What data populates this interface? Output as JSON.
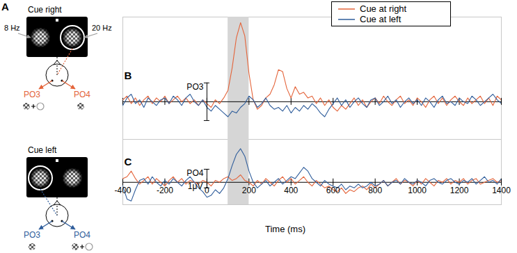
{
  "panel_a": {
    "label": "A",
    "top": {
      "title": "Cue right",
      "left_frequency": "8 Hz",
      "right_frequency": "20 Hz",
      "left_electrode": "PO3",
      "right_electrode": "PO4"
    },
    "bottom": {
      "title": "Cue left",
      "left_electrode": "PO3",
      "right_electrode": "PO4"
    }
  },
  "chart_data": [
    {
      "type": "line",
      "title": "B",
      "ylabel": "PO3",
      "x": [
        -400,
        -380,
        -360,
        -340,
        -320,
        -300,
        -280,
        -260,
        -240,
        -220,
        -200,
        -180,
        -160,
        -140,
        -120,
        -100,
        -80,
        -60,
        -40,
        -20,
        0,
        20,
        40,
        60,
        80,
        100,
        120,
        140,
        160,
        180,
        200,
        220,
        240,
        260,
        280,
        300,
        320,
        340,
        360,
        380,
        400,
        420,
        440,
        460,
        480,
        500,
        520,
        540,
        560,
        580,
        600,
        620,
        640,
        660,
        680,
        700,
        720,
        740,
        760,
        780,
        800,
        820,
        840,
        860,
        880,
        900,
        920,
        940,
        960,
        980,
        1000,
        1020,
        1040,
        1060,
        1080,
        1100,
        1120,
        1140,
        1160,
        1180,
        1200,
        1220,
        1240,
        1260,
        1280,
        1300,
        1320,
        1340,
        1360,
        1380,
        1400
      ],
      "xlim": [
        -400,
        1400
      ],
      "xticks": [
        -400,
        -200,
        0,
        200,
        400,
        600,
        800,
        1000,
        1200,
        1400
      ],
      "ylim": [
        -2,
        4.5
      ],
      "yticks": [
        -1,
        1
      ],
      "tick_labels": false,
      "highlight": [
        100,
        200
      ],
      "legend": "top",
      "series": [
        {
          "name": "Cue at right",
          "color": "#e4643a",
          "values": [
            0.1,
            0.3,
            -0.1,
            0.2,
            -0.2,
            0.1,
            0.3,
            -0.1,
            0.2,
            0.0,
            0.3,
            -0.1,
            0.1,
            0.3,
            0.0,
            0.2,
            -0.1,
            0.1,
            -0.2,
            0.1,
            -0.1,
            -0.3,
            0.1,
            -0.1,
            0.2,
            0.6,
            1.8,
            3.4,
            4.2,
            3.5,
            1.5,
            0.1,
            -0.4,
            -0.2,
            0.2,
            0.4,
            0.9,
            1.7,
            1.6,
            0.7,
            0.2,
            0.8,
            0.4,
            0.5,
            0.2,
            0.3,
            -0.1,
            0.2,
            -0.2,
            0.1,
            -0.3,
            -0.5,
            -0.2,
            -0.4,
            -0.1,
            0.2,
            -0.2,
            0.1,
            -0.3,
            0.0,
            0.2,
            -0.1,
            0.3,
            0.0,
            -0.2,
            0.1,
            0.3,
            -0.1,
            0.1,
            -0.2,
            0.2,
            0.0,
            -0.3,
            0.1,
            0.3,
            -0.1,
            0.2,
            -0.2,
            0.1,
            0.3,
            0.0,
            -0.2,
            0.2,
            -0.1,
            0.1,
            0.3,
            -0.1,
            0.2,
            -0.2,
            0.3,
            0.1
          ]
        },
        {
          "name": "Cue at left",
          "color": "#2f5d9b",
          "values": [
            -0.2,
            0.2,
            0.4,
            -0.1,
            0.1,
            -0.3,
            0.2,
            0.0,
            -0.2,
            0.1,
            0.2,
            -0.1,
            0.3,
            0.1,
            -0.2,
            0.2,
            0.4,
            0.0,
            -0.2,
            0.1,
            -0.3,
            -0.5,
            -0.2,
            -0.4,
            -0.6,
            -0.8,
            -0.5,
            -0.6,
            -0.3,
            -0.1,
            0.3,
            0.1,
            -0.3,
            -0.1,
            0.2,
            -0.2,
            -0.4,
            -0.3,
            -0.5,
            -0.2,
            -0.6,
            -0.3,
            -0.5,
            -0.2,
            -0.4,
            -0.1,
            -0.3,
            -0.6,
            -0.8,
            -0.4,
            -0.1,
            0.2,
            -0.2,
            0.1,
            -0.3,
            0.0,
            0.2,
            -0.1,
            -0.3,
            0.1,
            0.2,
            -0.2,
            0.0,
            0.3,
            -0.1,
            0.1,
            -0.3,
            0.0,
            0.2,
            -0.1,
            0.1,
            -0.2,
            0.2,
            0.0,
            -0.3,
            0.1,
            0.3,
            -0.1,
            0.0,
            -0.2,
            0.2,
            0.0,
            -0.1,
            0.3,
            0.1,
            -0.2,
            0.0,
            0.2,
            0.4,
            0.1,
            -0.1
          ]
        }
      ]
    },
    {
      "type": "line",
      "title": "C",
      "ylabel": "PO4",
      "xlabel": "Time (ms)",
      "annotations": [
        "1μV"
      ],
      "x": [
        -400,
        -380,
        -360,
        -340,
        -320,
        -300,
        -280,
        -260,
        -240,
        -220,
        -200,
        -180,
        -160,
        -140,
        -120,
        -100,
        -80,
        -60,
        -40,
        -20,
        0,
        20,
        40,
        60,
        80,
        100,
        120,
        140,
        160,
        180,
        200,
        220,
        240,
        260,
        280,
        300,
        320,
        340,
        360,
        380,
        400,
        420,
        440,
        460,
        480,
        500,
        520,
        540,
        560,
        580,
        600,
        620,
        640,
        660,
        680,
        700,
        720,
        740,
        760,
        780,
        800,
        820,
        840,
        860,
        880,
        900,
        920,
        940,
        960,
        980,
        1000,
        1020,
        1040,
        1060,
        1080,
        1100,
        1120,
        1140,
        1160,
        1180,
        1200,
        1220,
        1240,
        1260,
        1280,
        1300,
        1320,
        1340,
        1360,
        1380,
        1400
      ],
      "xlim": [
        -400,
        1400
      ],
      "xticks": [
        -400,
        -200,
        0,
        200,
        400,
        600,
        800,
        1000,
        1200,
        1400
      ],
      "ylim": [
        -1.2,
        2.3
      ],
      "yticks": [
        -0.3,
        0.7
      ],
      "tick_labels": "x",
      "highlight": [
        100,
        200
      ],
      "series": [
        {
          "name": "Cue at right",
          "color": "#e4643a",
          "values": [
            0.2,
            0.3,
            0.6,
            0.2,
            -0.1,
            0.1,
            0.3,
            -0.1,
            0.2,
            0.0,
            -0.2,
            0.1,
            0.3,
            0.0,
            0.2,
            -0.1,
            0.1,
            0.0,
            -0.1,
            0.1,
            0.0,
            -0.2,
            0.1,
            0.0,
            0.2,
            0.3,
            0.1,
            0.2,
            0.4,
            0.1,
            0.0,
            -0.2,
            0.1,
            -0.1,
            0.2,
            0.0,
            -0.2,
            0.1,
            0.3,
            0.0,
            0.2,
            -0.1,
            0.1,
            0.3,
            0.0,
            -0.2,
            0.1,
            -0.1,
            -0.3,
            -0.2,
            -0.4,
            -0.5,
            -0.3,
            -0.6,
            -0.4,
            -0.5,
            -0.3,
            -0.2,
            -0.4,
            -0.1,
            -0.3,
            -0.1,
            0.1,
            -0.2,
            0.0,
            0.2,
            -0.1,
            0.1,
            0.0,
            -0.2,
            0.1,
            -0.1,
            0.2,
            0.0,
            -0.2,
            0.1,
            0.0,
            0.2,
            -0.1,
            0.1,
            0.0,
            0.2,
            -0.1,
            0.1,
            0.2,
            -0.1,
            0.0,
            0.1,
            0.2,
            0.0,
            0.1
          ]
        },
        {
          "name": "Cue at left",
          "color": "#2f5d9b",
          "values": [
            -0.2,
            -0.9,
            -1.0,
            -0.4,
            0.1,
            0.2,
            -0.1,
            0.3,
            0.0,
            -0.2,
            0.1,
            -0.1,
            0.2,
            0.0,
            -0.2,
            0.1,
            0.3,
            0.0,
            -0.3,
            -0.5,
            -0.8,
            -0.7,
            -0.4,
            -0.6,
            -0.3,
            0.2,
            0.9,
            1.5,
            1.8,
            1.4,
            0.6,
            0.0,
            -0.3,
            -0.1,
            0.1,
            -0.2,
            0.0,
            0.2,
            -0.1,
            0.1,
            0.3,
            0.2,
            0.5,
            0.8,
            0.6,
            0.2,
            0.0,
            -0.2,
            0.1,
            -0.1,
            -0.2,
            -0.3,
            -0.1,
            -0.4,
            -0.2,
            -0.3,
            -0.1,
            -0.3,
            -0.2,
            0.0,
            -0.2,
            -0.1,
            0.1,
            -0.2,
            0.0,
            0.1,
            -0.1,
            0.2,
            0.0,
            -0.1,
            0.1,
            0.0,
            -0.2,
            0.1,
            0.2,
            0.0,
            -0.1,
            0.1,
            0.2,
            0.0,
            -0.1,
            0.1,
            0.0,
            0.2,
            -0.1,
            0.1,
            0.3,
            0.0,
            0.1,
            -0.1,
            0.2
          ]
        }
      ]
    }
  ]
}
